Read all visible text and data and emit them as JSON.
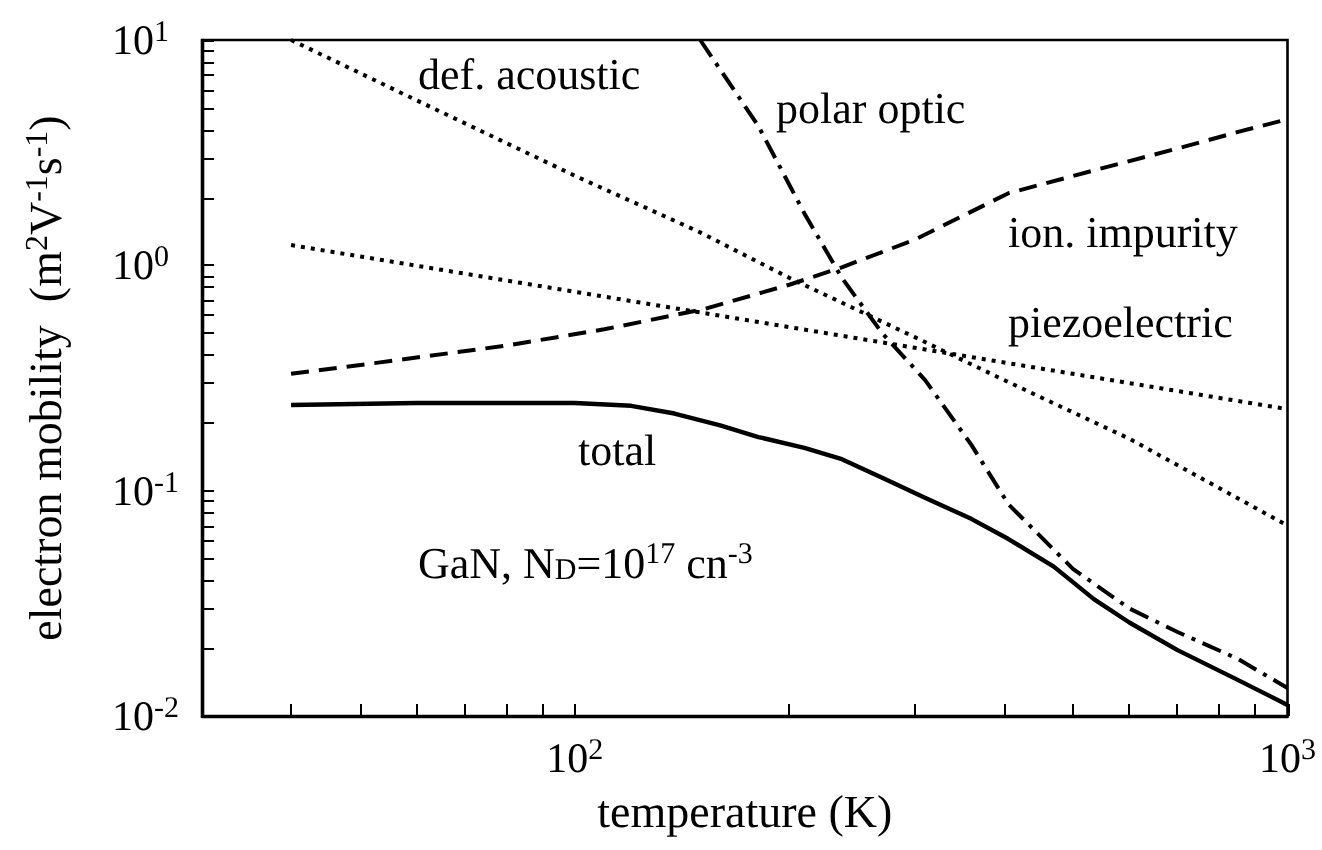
{
  "chart_data": {
    "type": "line",
    "xlabel": "temperature (K)",
    "ylabel": "electron mobility  (m$^{2}$V$^{-1}$s$^{-1}$)",
    "log": "xy",
    "grid": false,
    "legend": false,
    "marker": "none",
    "xlim": [
      30,
      1000
    ],
    "xticks": [
      {
        "value": 40,
        "label": null
      },
      {
        "value": 50,
        "label": null
      },
      {
        "value": 60,
        "label": null
      },
      {
        "value": 70,
        "label": null
      },
      {
        "value": 80,
        "label": null
      },
      {
        "value": 90,
        "label": null
      },
      {
        "value": 100,
        "label": "10$^{2}$"
      },
      {
        "value": 200,
        "label": null
      },
      {
        "value": 300,
        "label": null
      },
      {
        "value": 400,
        "label": null
      },
      {
        "value": 500,
        "label": null
      },
      {
        "value": 600,
        "label": null
      },
      {
        "value": 700,
        "label": null
      },
      {
        "value": 800,
        "label": null
      },
      {
        "value": 900,
        "label": null
      },
      {
        "value": 1000,
        "label": "10$^{3}$"
      }
    ],
    "ylim": [
      0.01,
      10
    ],
    "yticks": [
      {
        "value": 0.01,
        "label": "10$^{-2}$"
      },
      {
        "value": 0.02,
        "label": null
      },
      {
        "value": 0.03,
        "label": null
      },
      {
        "value": 0.04,
        "label": null
      },
      {
        "value": 0.05,
        "label": null
      },
      {
        "value": 0.06,
        "label": null
      },
      {
        "value": 0.07,
        "label": null
      },
      {
        "value": 0.08,
        "label": null
      },
      {
        "value": 0.09,
        "label": null
      },
      {
        "value": 0.1,
        "label": "10$^{-1}$"
      },
      {
        "value": 0.2,
        "label": null
      },
      {
        "value": 0.3,
        "label": null
      },
      {
        "value": 0.4,
        "label": null
      },
      {
        "value": 0.5,
        "label": null
      },
      {
        "value": 0.6,
        "label": null
      },
      {
        "value": 0.7,
        "label": null
      },
      {
        "value": 0.8,
        "label": null
      },
      {
        "value": 0.9,
        "label": null
      },
      {
        "value": 1,
        "label": "10$^{0}$"
      },
      {
        "value": 2,
        "label": null
      },
      {
        "value": 3,
        "label": null
      },
      {
        "value": 4,
        "label": null
      },
      {
        "value": 5,
        "label": null
      },
      {
        "value": 6,
        "label": null
      },
      {
        "value": 7,
        "label": null
      },
      {
        "value": 8,
        "label": null
      },
      {
        "value": 9,
        "label": null
      },
      {
        "value": 10,
        "label": "10$^{1}$"
      }
    ],
    "series": [
      {
        "name": "def. acoustic",
        "color": "#000000",
        "line_style": "dotted",
        "x": [
          40,
          60,
          100,
          150,
          200,
          300,
          400,
          600,
          1000
        ],
        "values": [
          10,
          5.4,
          2.5,
          1.4,
          0.88,
          0.48,
          0.31,
          0.17,
          0.07
        ]
      },
      {
        "name": "polar optic",
        "color": "#000000",
        "line_style": "dashdot",
        "x": [
          150,
          181,
          210,
          237,
          270,
          310,
          360,
          406,
          500,
          600,
          701,
          850,
          1000
        ],
        "values": [
          10,
          4.15,
          1.7,
          0.88,
          0.5,
          0.31,
          0.16,
          0.087,
          0.045,
          0.03,
          0.0236,
          0.018,
          0.0133
        ]
      },
      {
        "name": "ion. impurity",
        "color": "#000000",
        "line_style": "dashed",
        "x": [
          40,
          53,
          80,
          110,
          152,
          200,
          237,
          300,
          406,
          550,
          701,
          850,
          1000
        ],
        "values": [
          0.33,
          0.37,
          0.44,
          0.52,
          0.64,
          0.82,
          0.98,
          1.3,
          2.09,
          2.7,
          3.3,
          3.9,
          4.45
        ]
      },
      {
        "name": "piezoelectric",
        "color": "#000000",
        "line_style": "dotted",
        "x": [
          40,
          1000
        ],
        "values": [
          1.23,
          0.23
        ]
      },
      {
        "name": "total",
        "color": "#000000",
        "line_style": "solid",
        "x": [
          40,
          60,
          80,
          100,
          120,
          138,
          160,
          181,
          210,
          237,
          270,
          310,
          360,
          406,
          470,
          535,
          600,
          701,
          850,
          1000
        ],
        "values": [
          0.24,
          0.245,
          0.245,
          0.245,
          0.238,
          0.22,
          0.195,
          0.173,
          0.155,
          0.138,
          0.114,
          0.093,
          0.075,
          0.061,
          0.046,
          0.033,
          0.026,
          0.0196,
          0.0145,
          0.0112
        ]
      }
    ],
    "annotations": [
      "GaN, N$_{D}$=10$^{17}$ cn$^{-3}$"
    ]
  }
}
